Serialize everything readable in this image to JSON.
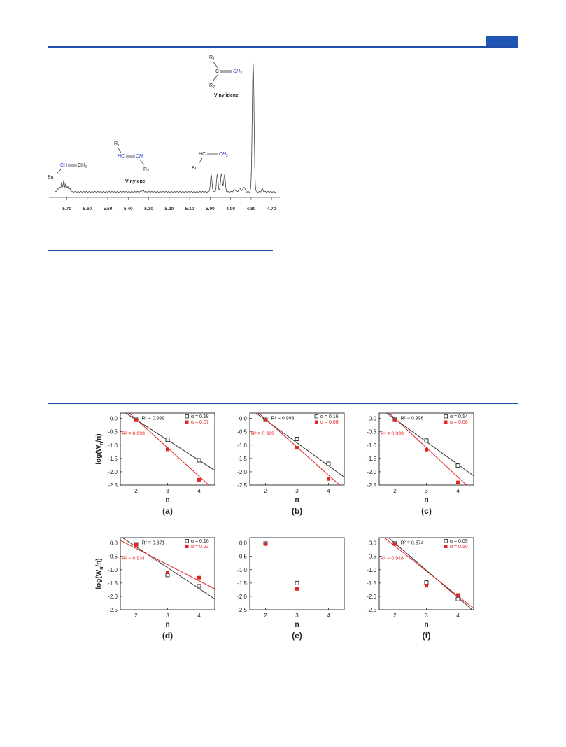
{
  "colors": {
    "accent": "#1f4fa8",
    "black_series": "#222222",
    "red_series": "#e52521"
  },
  "nmr": {
    "x_ticks": [
      "5.70",
      "5.60",
      "5.50",
      "5.40",
      "5.30",
      "5.20",
      "5.10",
      "5.00",
      "4.90",
      "4.80",
      "4.70"
    ],
    "labels": {
      "vinylidene": "Vinylidene",
      "vinylene": "Vinylene",
      "bu1": "Bu",
      "bu2": "Bu",
      "ch": "CH",
      "ch2": "CH",
      "ch2_sub": "2",
      "hc": "HC",
      "ch_blue": "CH",
      "hc_right": "HC",
      "ch2_blue": "CH",
      "ch2_blue_sub": "2",
      "c_center": "C",
      "ch2_vinylidene": "CH",
      "ch2_vinylidene_sub": "2",
      "r1": "R",
      "r1_sub": "1",
      "r2": "R",
      "r2_sub": "2",
      "r1b": "R",
      "r1b_sub": "1",
      "r2b": "R",
      "r2b_sub": "2"
    }
  },
  "chart_data": [
    {
      "type": "scatter",
      "panel": "(a)",
      "xlabel": "n",
      "ylabel": "log(W_n/n)",
      "x_ticks": [
        "2",
        "3",
        "4"
      ],
      "y_ticks": [
        "0.0",
        "-0.5",
        "-1.0",
        "-1.5",
        "-2.0",
        "-2.5"
      ],
      "xlim": [
        1.5,
        4.5
      ],
      "ylim": [
        -2.5,
        0.2
      ],
      "series": [
        {
          "name": "α = 0.18",
          "marker": "open-square",
          "x": [
            2,
            3,
            4
          ],
          "y": [
            -0.05,
            -0.8,
            -1.57
          ],
          "r2": "R² = 0.999",
          "fit": [
            [
              1.5,
              0.33
            ],
            [
              4.5,
              -1.95
            ]
          ]
        },
        {
          "name": "α = 0.07",
          "marker": "filled-square",
          "x": [
            2,
            3,
            4
          ],
          "y": [
            -0.07,
            -1.16,
            -2.3
          ],
          "r2": "R² = 0.999",
          "fit": [
            [
              1.5,
              0.5
            ],
            [
              4.5,
              -2.7
            ]
          ]
        }
      ]
    },
    {
      "type": "scatter",
      "panel": "(b)",
      "xlabel": "n",
      "ylabel": "",
      "x_ticks": [
        "2",
        "3",
        "4"
      ],
      "y_ticks": [
        "0.0",
        "-0.5",
        "-1.0",
        "-1.5",
        "-2.0",
        "-2.5"
      ],
      "xlim": [
        1.5,
        4.5
      ],
      "ylim": [
        -2.5,
        0.2
      ],
      "series": [
        {
          "name": "α = 0.16",
          "marker": "open-square",
          "x": [
            2,
            3,
            4
          ],
          "y": [
            -0.05,
            -0.77,
            -1.7
          ],
          "r2": "R² = 0.993",
          "fit": [
            [
              1.5,
              0.37
            ],
            [
              4.5,
              -2.2
            ]
          ]
        },
        {
          "name": "α = 0.08",
          "marker": "filled-square",
          "x": [
            2,
            3,
            4
          ],
          "y": [
            -0.07,
            -1.1,
            -2.27
          ],
          "r2": "R² = 0.999",
          "fit": [
            [
              1.5,
              0.5
            ],
            [
              4.5,
              -2.65
            ]
          ]
        }
      ]
    },
    {
      "type": "scatter",
      "panel": "(c)",
      "xlabel": "n",
      "ylabel": "",
      "x_ticks": [
        "2",
        "3",
        "4"
      ],
      "y_ticks": [
        "0.0",
        "-0.5",
        "-1.0",
        "-1.5",
        "-2.0",
        "-2.5"
      ],
      "xlim": [
        1.5,
        4.5
      ],
      "ylim": [
        -2.5,
        0.2
      ],
      "series": [
        {
          "name": "α = 0.14",
          "marker": "open-square",
          "x": [
            2,
            3,
            4
          ],
          "y": [
            -0.05,
            -0.83,
            -1.77
          ],
          "r2": "R² = 0.996",
          "fit": [
            [
              1.5,
              0.4
            ],
            [
              4.5,
              -2.15
            ]
          ]
        },
        {
          "name": "α = 0.06",
          "marker": "filled-square",
          "x": [
            2,
            3,
            4
          ],
          "y": [
            -0.07,
            -1.17,
            -2.4
          ],
          "r2": "R² = 0.999",
          "fit": [
            [
              1.5,
              0.55
            ],
            [
              4.5,
              -2.75
            ]
          ]
        }
      ]
    },
    {
      "type": "scatter",
      "panel": "(d)",
      "xlabel": "n",
      "ylabel": "log(W_n/n)",
      "x_ticks": [
        "2",
        "3",
        "4"
      ],
      "y_ticks": [
        "0.0",
        "-0.5",
        "-1.0",
        "-1.5",
        "-2.0",
        "-2.5"
      ],
      "xlim": [
        1.5,
        4.5
      ],
      "ylim": [
        -2.5,
        0.2
      ],
      "series": [
        {
          "name": "α = 0.16",
          "marker": "open-square",
          "x": [
            2,
            3,
            4
          ],
          "y": [
            -0.05,
            -1.2,
            -1.62
          ],
          "r2": "R² = 0.871",
          "fit": [
            [
              1.5,
              0.25
            ],
            [
              4.5,
              -2.1
            ]
          ]
        },
        {
          "name": "α = 0.23",
          "marker": "filled-square",
          "x": [
            2,
            3,
            4
          ],
          "y": [
            -0.07,
            -1.1,
            -1.3
          ],
          "r2": "R² = 0.934",
          "fit": [
            [
              1.5,
              0.1
            ],
            [
              4.5,
              -1.72
            ]
          ]
        }
      ]
    },
    {
      "type": "scatter",
      "panel": "(e)",
      "xlabel": "n",
      "ylabel": "",
      "x_ticks": [
        "2",
        "3",
        "4"
      ],
      "y_ticks": [
        "0.0",
        "-0.5",
        "-1.0",
        "-1.5",
        "-2.0",
        "-2.5"
      ],
      "xlim": [
        1.5,
        4.5
      ],
      "ylim": [
        -2.5,
        0.2
      ],
      "series": [
        {
          "name": "",
          "marker": "open-square",
          "x": [
            2,
            3
          ],
          "y": [
            -0.02,
            -1.5
          ],
          "r2": "",
          "fit": []
        },
        {
          "name": "",
          "marker": "filled-square",
          "x": [
            2,
            3
          ],
          "y": [
            -0.04,
            -1.72
          ],
          "r2": "",
          "fit": []
        }
      ]
    },
    {
      "type": "scatter",
      "panel": "(f)",
      "xlabel": "n",
      "ylabel": "",
      "x_ticks": [
        "2",
        "3",
        "4"
      ],
      "y_ticks": [
        "0.0",
        "-0.5",
        "-1.0",
        "-1.5",
        "-2.0",
        "-2.5"
      ],
      "xlim": [
        1.5,
        4.5
      ],
      "ylim": [
        -2.5,
        0.2
      ],
      "series": [
        {
          "name": "α = 0.09",
          "marker": "open-square",
          "x": [
            2,
            3,
            4
          ],
          "y": [
            -0.02,
            -1.48,
            -2.1
          ],
          "r2": "R² = 0.874",
          "fit": [
            [
              1.5,
              0.5
            ],
            [
              4.5,
              -2.55
            ]
          ]
        },
        {
          "name": "α = 0.10",
          "marker": "filled-square",
          "x": [
            2,
            3,
            4
          ],
          "y": [
            -0.04,
            -1.6,
            -1.95
          ],
          "r2": "R² = 0.948",
          "fit": [
            [
              1.5,
              0.35
            ],
            [
              4.5,
              -2.45
            ]
          ]
        }
      ]
    }
  ]
}
